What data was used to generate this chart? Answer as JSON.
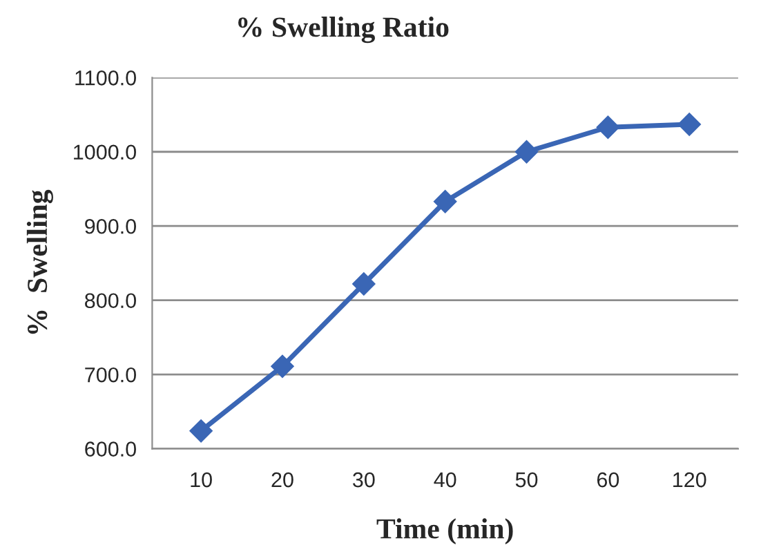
{
  "chart_data": {
    "type": "line",
    "title": "% Swelling Ratio",
    "xlabel": "Time (min)",
    "ylabel": "%  Swelling",
    "categories": [
      "10",
      "20",
      "30",
      "40",
      "50",
      "60",
      "120"
    ],
    "series": [
      {
        "color": "#3a66b5",
        "values": [
          624,
          711,
          822,
          933,
          1000,
          1033,
          1037
        ]
      }
    ],
    "ylim": [
      600,
      1100
    ],
    "yticks": [
      {
        "value": 600,
        "label": "600.0"
      },
      {
        "value": 700,
        "label": "700.0"
      },
      {
        "value": 800,
        "label": "800.0"
      },
      {
        "value": 900,
        "label": "900.0"
      },
      {
        "value": 1000,
        "label": "1000.0"
      },
      {
        "value": 1100,
        "label": "1100.0"
      }
    ],
    "grid": "y",
    "marker": "diamond",
    "line_style": "solid",
    "legend": false
  }
}
